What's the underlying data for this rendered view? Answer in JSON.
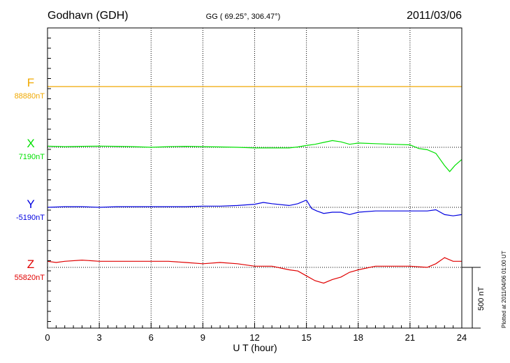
{
  "chart_data": {
    "type": "line",
    "title_left": "Godhavn (GDH)",
    "subtitle": "GG ( 69.25°, 306.47°)",
    "title_right": "2011/03/06",
    "xlabel": "U T (hour)",
    "xlim": [
      0,
      24
    ],
    "x_ticks": [
      "0",
      "3",
      "6",
      "9",
      "12",
      "15",
      "18",
      "21",
      "24"
    ],
    "scale_bar_label": "500 nT",
    "plotted_note": "Plotted at 2011/04/06 01:00 UT",
    "grid": "dotted vertical lines every 3 hours; dotted baseline for each trace",
    "series": [
      {
        "name": "F",
        "baseline": "88880nT",
        "color": "#f0a800",
        "x": [
          0,
          24
        ],
        "y": [
          0,
          0
        ]
      },
      {
        "name": "X",
        "baseline": "7190nT",
        "color": "#00e000",
        "x": [
          0,
          1,
          2,
          3,
          4,
          5,
          6,
          7,
          8,
          9,
          10,
          11,
          12,
          13,
          14,
          14.5,
          15,
          15.5,
          16,
          16.5,
          17,
          17.5,
          18,
          19,
          20,
          21,
          21.5,
          22,
          22.5,
          23,
          23.3,
          23.6,
          24
        ],
        "y": [
          10,
          5,
          8,
          10,
          8,
          5,
          0,
          5,
          8,
          5,
          3,
          0,
          -5,
          -5,
          -5,
          3,
          15,
          25,
          40,
          55,
          45,
          25,
          35,
          30,
          25,
          20,
          -10,
          -20,
          -50,
          -150,
          -200,
          -150,
          -100
        ]
      },
      {
        "name": "Y",
        "baseline": "-5190nT",
        "color": "#0000e0",
        "x": [
          0,
          1,
          2,
          3,
          4,
          5,
          6,
          7,
          8,
          9,
          10,
          11,
          12,
          12.5,
          13,
          14,
          14.5,
          15,
          15.3,
          15.6,
          16,
          16.5,
          17,
          17.5,
          18,
          19,
          20,
          21,
          22,
          22.5,
          23,
          23.5,
          24
        ],
        "y": [
          0,
          5,
          5,
          0,
          5,
          5,
          5,
          5,
          5,
          10,
          10,
          15,
          25,
          40,
          30,
          15,
          30,
          60,
          -10,
          -30,
          -50,
          -40,
          -40,
          -60,
          -40,
          -30,
          -30,
          -30,
          -30,
          -20,
          -60,
          -70,
          -60
        ]
      },
      {
        "name": "Z",
        "baseline": "55820nT",
        "color": "#e00000",
        "x": [
          0,
          0.5,
          1,
          2,
          3,
          4,
          5,
          6,
          7,
          8,
          9,
          10,
          11,
          12,
          13,
          14,
          14.5,
          15,
          15.5,
          16,
          16.5,
          17,
          17.5,
          18,
          19,
          20,
          21,
          22,
          22.5,
          23,
          23.5,
          24
        ],
        "y": [
          50,
          40,
          50,
          60,
          50,
          50,
          50,
          50,
          50,
          40,
          30,
          40,
          30,
          10,
          10,
          -20,
          -30,
          -70,
          -110,
          -130,
          -100,
          -80,
          -40,
          -20,
          10,
          10,
          10,
          0,
          30,
          80,
          50,
          50
        ]
      }
    ]
  }
}
